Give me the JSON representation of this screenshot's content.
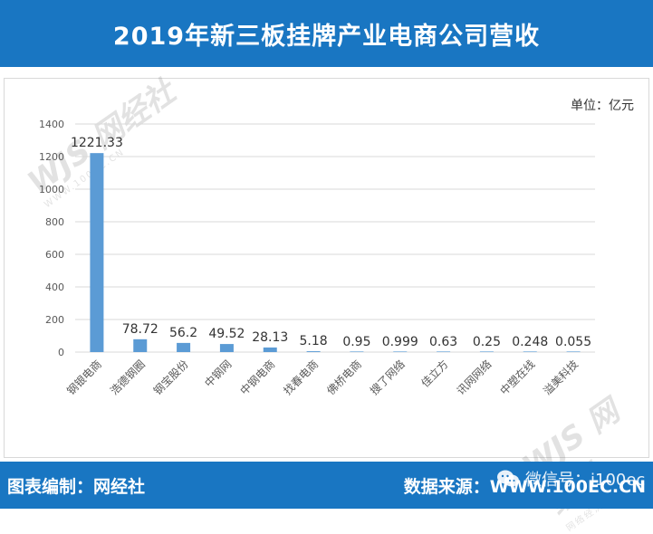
{
  "header": {
    "title": "2019年新三板挂牌产业电商公司营收"
  },
  "unit_label": "单位：亿元",
  "footer": {
    "left": "图表编制：网经社",
    "right": "数据来源：WWW.100EC.CN",
    "wechat": "微信号：i100ec"
  },
  "watermark": {
    "logo": "网经社",
    "sub": "WWW.100EC.CN",
    "sub2": "网络经济服务平台"
  },
  "colors": {
    "bar": "#5b9bd5",
    "brand": "#1976c2",
    "grid": "#d9d9d9"
  },
  "chart_data": {
    "type": "bar",
    "categories": [
      "钢银电商",
      "浩德钢圈",
      "钢宝股份",
      "中钢网",
      "中钢电商",
      "找春电商",
      "佛桥电商",
      "搜了网络",
      "佳立方",
      "讯网网络",
      "中塑在线",
      "溢美科技"
    ],
    "values": [
      1221.33,
      78.72,
      56.2,
      49.52,
      28.13,
      5.18,
      0.95,
      0.999,
      0.63,
      0.25,
      0.248,
      0.055
    ],
    "value_labels": [
      "1221.33",
      "78.72",
      "56.2",
      "49.52",
      "28.13",
      "5.18",
      "0.95",
      "0.999",
      "0.63",
      "0.25",
      "0.248",
      "0.055"
    ],
    "yticks": [
      0,
      200,
      400,
      600,
      800,
      1000,
      1200,
      1400
    ],
    "ylim": [
      0,
      1400
    ],
    "grid": true,
    "legend": "none"
  }
}
